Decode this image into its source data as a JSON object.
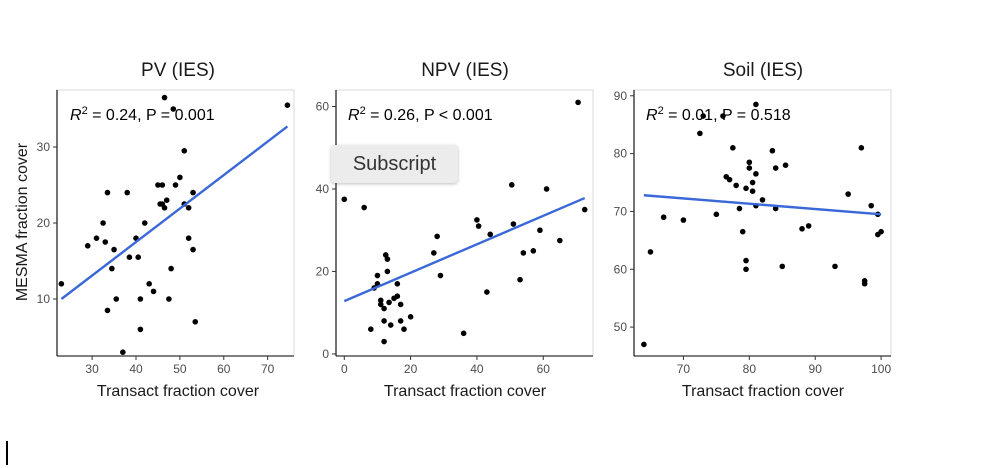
{
  "ylabel": "MESMA fraction cover",
  "tooltip": {
    "text": "Subscript"
  },
  "colors": {
    "fit_line": "#3b68d8",
    "points": "#000000",
    "axis": "#000000"
  },
  "chart_data": [
    {
      "type": "scatter",
      "title": "PV (IES)",
      "xlabel": "Transact fraction cover",
      "ylabel": "MESMA fraction cover",
      "xlim": [
        22,
        76
      ],
      "ylim": [
        2.5,
        37.5
      ],
      "xticks": [
        30,
        40,
        50,
        60,
        70
      ],
      "yticks": [
        10,
        20,
        30
      ],
      "annotation": {
        "r2": "0.24",
        "p": "P = 0.001"
      },
      "fit": {
        "x": [
          23,
          74.5
        ],
        "y": [
          10,
          32.7
        ]
      },
      "points": [
        [
          23,
          12
        ],
        [
          29,
          17
        ],
        [
          31,
          18
        ],
        [
          32.5,
          20
        ],
        [
          33,
          17.5
        ],
        [
          33.5,
          8.5
        ],
        [
          33.5,
          24
        ],
        [
          34.5,
          14
        ],
        [
          35,
          16.5
        ],
        [
          35.5,
          10
        ],
        [
          37,
          3
        ],
        [
          38,
          24
        ],
        [
          38.5,
          15.5
        ],
        [
          40,
          18
        ],
        [
          40.5,
          15.5
        ],
        [
          41,
          10
        ],
        [
          41,
          6
        ],
        [
          42,
          20
        ],
        [
          43,
          12
        ],
        [
          44,
          11
        ],
        [
          45,
          25
        ],
        [
          45.5,
          22.5
        ],
        [
          46,
          25
        ],
        [
          46,
          22.5
        ],
        [
          46.5,
          22
        ],
        [
          46.5,
          36.5
        ],
        [
          47,
          23
        ],
        [
          47.5,
          10
        ],
        [
          48,
          14
        ],
        [
          48.5,
          35
        ],
        [
          49,
          25
        ],
        [
          50,
          26
        ],
        [
          51,
          29.5
        ],
        [
          51,
          22.5
        ],
        [
          52,
          18
        ],
        [
          52,
          22
        ],
        [
          53,
          24
        ],
        [
          53,
          16.5
        ],
        [
          53.5,
          7
        ],
        [
          74.5,
          35.5
        ]
      ]
    },
    {
      "type": "scatter",
      "title": "NPV (IES)",
      "xlabel": "Transact fraction cover",
      "ylabel": "",
      "xlim": [
        -2.5,
        75
      ],
      "ylim": [
        -0.5,
        64
      ],
      "xticks": [
        0,
        20,
        40,
        60
      ],
      "yticks": [
        0,
        20,
        40,
        60
      ],
      "annotation": {
        "r2": "0.26",
        "p": "P < 0.001"
      },
      "fit": {
        "x": [
          0,
          72.5
        ],
        "y": [
          12.8,
          37.8
        ]
      },
      "points": [
        [
          0,
          37.5
        ],
        [
          6,
          35.5
        ],
        [
          8,
          6
        ],
        [
          9,
          16
        ],
        [
          10,
          17
        ],
        [
          10,
          19
        ],
        [
          11,
          13
        ],
        [
          11,
          12
        ],
        [
          12,
          8
        ],
        [
          12,
          11
        ],
        [
          12,
          3
        ],
        [
          12.5,
          24
        ],
        [
          13,
          23
        ],
        [
          13,
          20
        ],
        [
          13.5,
          12.5
        ],
        [
          14,
          7
        ],
        [
          15,
          13.5
        ],
        [
          16,
          14
        ],
        [
          16,
          17
        ],
        [
          17,
          12
        ],
        [
          17,
          8
        ],
        [
          18,
          6
        ],
        [
          20,
          9
        ],
        [
          27,
          24.5
        ],
        [
          28,
          28.5
        ],
        [
          29,
          19
        ],
        [
          36,
          5
        ],
        [
          40,
          32.5
        ],
        [
          40.5,
          31
        ],
        [
          43,
          15
        ],
        [
          44,
          29
        ],
        [
          50.5,
          41
        ],
        [
          51,
          31.5
        ],
        [
          53,
          18
        ],
        [
          54,
          24.5
        ],
        [
          57,
          25
        ],
        [
          59,
          30
        ],
        [
          61,
          40
        ],
        [
          65,
          27.5
        ],
        [
          70.5,
          61
        ],
        [
          72.5,
          35
        ]
      ]
    },
    {
      "type": "scatter",
      "title": "Soil (IES)",
      "xlabel": "Transact fraction cover",
      "ylabel": "",
      "xlim": [
        62.5,
        101.5
      ],
      "ylim": [
        45,
        91
      ],
      "xticks": [
        70,
        80,
        90,
        100
      ],
      "yticks": [
        50,
        60,
        70,
        80,
        90
      ],
      "annotation": {
        "r2": "0.01",
        "p": "P = 0.518"
      },
      "fit": {
        "x": [
          64,
          100
        ],
        "y": [
          72.8,
          69.5
        ]
      },
      "points": [
        [
          64,
          47
        ],
        [
          65,
          63
        ],
        [
          67,
          69
        ],
        [
          70,
          68.5
        ],
        [
          72.5,
          83.5
        ],
        [
          73,
          86.5
        ],
        [
          75,
          69.5
        ],
        [
          76,
          86.5
        ],
        [
          76.5,
          76
        ],
        [
          77,
          75.5
        ],
        [
          77.5,
          81
        ],
        [
          78,
          74.5
        ],
        [
          78.5,
          70.5
        ],
        [
          79,
          66.5
        ],
        [
          79.5,
          74
        ],
        [
          79.5,
          60
        ],
        [
          79.5,
          61.5
        ],
        [
          80,
          77.5
        ],
        [
          80,
          78.5
        ],
        [
          80.5,
          73.5
        ],
        [
          80.5,
          75
        ],
        [
          81,
          76.5
        ],
        [
          81,
          71
        ],
        [
          81,
          88.5
        ],
        [
          82,
          72
        ],
        [
          83.5,
          80.5
        ],
        [
          84,
          77.5
        ],
        [
          84,
          70.5
        ],
        [
          85,
          60.5
        ],
        [
          85.5,
          78
        ],
        [
          88,
          67
        ],
        [
          89,
          67.5
        ],
        [
          93,
          60.5
        ],
        [
          95,
          73
        ],
        [
          97,
          81
        ],
        [
          97.5,
          58
        ],
        [
          97.5,
          57.5
        ],
        [
          98.5,
          71
        ],
        [
          99.5,
          66
        ],
        [
          99.5,
          69.5
        ],
        [
          100,
          66.5
        ]
      ]
    }
  ]
}
